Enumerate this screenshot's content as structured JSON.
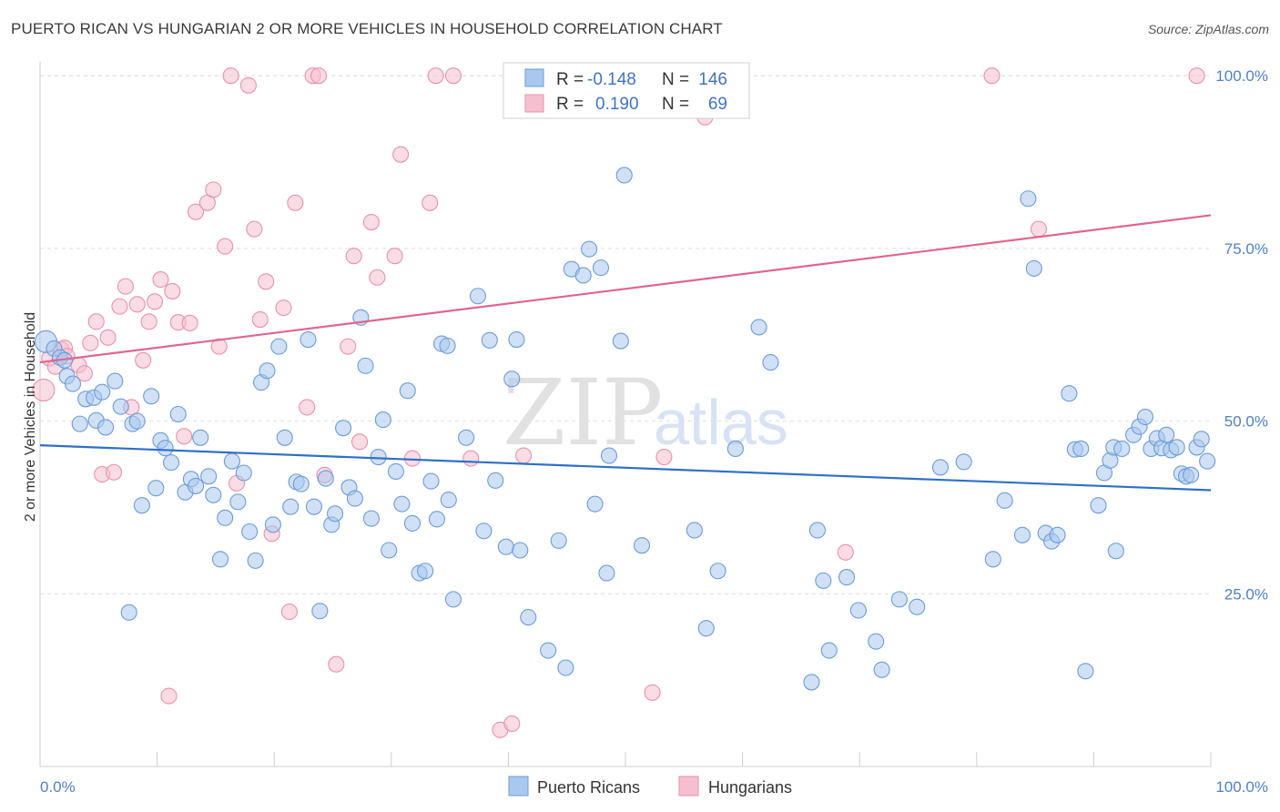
{
  "title": "PUERTO RICAN VS HUNGARIAN 2 OR MORE VEHICLES IN HOUSEHOLD CORRELATION CHART",
  "source": "Source: ZipAtlas.com",
  "watermark": {
    "zip": "ZIP",
    "atlas": "atlas"
  },
  "legend": {
    "rows": [
      {
        "r_label": "R =",
        "r_value": "-0.148",
        "n_label": "N =",
        "n_value": "146"
      },
      {
        "r_label": "R =",
        "r_value": "0.190",
        "n_label": "N =",
        "n_value": "69"
      }
    ]
  },
  "colors": {
    "blue_fill": "#a9c8ef",
    "blue_stroke": "#6c9bd8",
    "blue_line": "#2e6fc9",
    "pink_fill": "#f6bfd0",
    "pink_stroke": "#e891ad",
    "pink_line": "#e06591",
    "tick": "#4f7fd0",
    "grid": "#dddddd"
  },
  "chart_data": {
    "type": "scatter",
    "title": "PUERTO RICAN VS HUNGARIAN 2 OR MORE VEHICLES IN HOUSEHOLD CORRELATION CHART",
    "xlabel": "",
    "ylabel": "2 or more Vehicles in Household",
    "xlim": [
      0,
      100
    ],
    "ylim": [
      0,
      102
    ],
    "x_tick_labels": [
      "0.0%",
      "100.0%"
    ],
    "y_ticks": [
      25,
      50,
      75,
      100
    ],
    "y_tick_labels": [
      "25.0%",
      "50.0%",
      "75.0%",
      "100.0%"
    ],
    "grid": true,
    "legend_position": "top-center",
    "series": [
      {
        "name": "Puerto Ricans",
        "r": -0.148,
        "n": 146,
        "trend": {
          "x": [
            0,
            100
          ],
          "y": [
            46.5,
            40.0
          ]
        },
        "points": [
          [
            0.5,
            61.5
          ],
          [
            1.2,
            60.5
          ],
          [
            1.7,
            59.2
          ],
          [
            2.1,
            58.8
          ],
          [
            2.3,
            56.5
          ],
          [
            2.8,
            55.4
          ],
          [
            3.4,
            49.6
          ],
          [
            3.9,
            53.2
          ],
          [
            4.6,
            53.4
          ],
          [
            4.8,
            50.1
          ],
          [
            5.3,
            54.2
          ],
          [
            5.6,
            49.1
          ],
          [
            6.4,
            55.8
          ],
          [
            6.9,
            52.1
          ],
          [
            7.6,
            22.3
          ],
          [
            7.9,
            49.6
          ],
          [
            8.3,
            50.0
          ],
          [
            8.7,
            37.8
          ],
          [
            9.5,
            53.6
          ],
          [
            9.9,
            40.3
          ],
          [
            10.3,
            47.2
          ],
          [
            10.7,
            46.1
          ],
          [
            11.2,
            44.0
          ],
          [
            11.8,
            51.0
          ],
          [
            12.4,
            39.7
          ],
          [
            12.9,
            41.6
          ],
          [
            13.3,
            40.6
          ],
          [
            13.7,
            47.6
          ],
          [
            14.4,
            42.0
          ],
          [
            14.8,
            39.3
          ],
          [
            15.4,
            30.0
          ],
          [
            15.8,
            36.0
          ],
          [
            16.4,
            44.2
          ],
          [
            16.9,
            38.3
          ],
          [
            17.4,
            42.5
          ],
          [
            17.9,
            34.0
          ],
          [
            18.4,
            29.8
          ],
          [
            18.9,
            55.6
          ],
          [
            19.4,
            57.3
          ],
          [
            19.9,
            35.0
          ],
          [
            20.4,
            60.8
          ],
          [
            20.9,
            47.6
          ],
          [
            21.4,
            37.6
          ],
          [
            21.9,
            41.2
          ],
          [
            22.3,
            40.9
          ],
          [
            22.9,
            61.8
          ],
          [
            23.4,
            37.6
          ],
          [
            23.9,
            22.5
          ],
          [
            24.4,
            41.7
          ],
          [
            24.9,
            35.0
          ],
          [
            25.2,
            36.6
          ],
          [
            25.9,
            49.0
          ],
          [
            26.4,
            40.4
          ],
          [
            26.9,
            38.8
          ],
          [
            27.4,
            65.0
          ],
          [
            27.8,
            58.0
          ],
          [
            28.3,
            35.9
          ],
          [
            28.9,
            44.8
          ],
          [
            29.3,
            50.2
          ],
          [
            29.8,
            31.3
          ],
          [
            30.4,
            42.7
          ],
          [
            30.9,
            38.0
          ],
          [
            31.4,
            54.4
          ],
          [
            31.8,
            35.2
          ],
          [
            32.4,
            28.0
          ],
          [
            32.9,
            28.3
          ],
          [
            33.4,
            41.3
          ],
          [
            33.9,
            35.8
          ],
          [
            34.3,
            61.2
          ],
          [
            34.9,
            38.6
          ],
          [
            35.3,
            24.2
          ],
          [
            36.4,
            47.6
          ],
          [
            37.4,
            68.1
          ],
          [
            37.9,
            34.1
          ],
          [
            38.4,
            61.7
          ],
          [
            38.9,
            41.4
          ],
          [
            39.8,
            31.8
          ],
          [
            40.3,
            56.1
          ],
          [
            40.7,
            61.8
          ],
          [
            41.0,
            31.3
          ],
          [
            41.7,
            21.6
          ],
          [
            43.4,
            16.8
          ],
          [
            44.3,
            32.7
          ],
          [
            44.9,
            14.3
          ],
          [
            45.4,
            72.0
          ],
          [
            46.4,
            71.1
          ],
          [
            46.9,
            74.9
          ],
          [
            47.4,
            38.0
          ],
          [
            47.9,
            72.2
          ],
          [
            48.4,
            28.0
          ],
          [
            48.6,
            45.0
          ],
          [
            49.6,
            61.6
          ],
          [
            49.9,
            85.6
          ],
          [
            51.4,
            32.0
          ],
          [
            55.9,
            34.2
          ],
          [
            56.9,
            20.0
          ],
          [
            57.9,
            28.3
          ],
          [
            59.4,
            46.0
          ],
          [
            61.4,
            63.6
          ],
          [
            62.4,
            58.5
          ],
          [
            65.9,
            12.2
          ],
          [
            66.4,
            34.2
          ],
          [
            66.9,
            26.9
          ],
          [
            67.4,
            16.8
          ],
          [
            68.9,
            27.4
          ],
          [
            69.9,
            22.6
          ],
          [
            71.4,
            18.1
          ],
          [
            71.9,
            14.0
          ],
          [
            73.4,
            24.2
          ],
          [
            74.9,
            23.1
          ],
          [
            76.9,
            43.3
          ],
          [
            78.9,
            44.1
          ],
          [
            81.4,
            30.0
          ],
          [
            82.4,
            38.5
          ],
          [
            83.9,
            33.5
          ],
          [
            84.4,
            82.2
          ],
          [
            84.9,
            72.1
          ],
          [
            85.9,
            33.8
          ],
          [
            86.4,
            32.6
          ],
          [
            86.9,
            33.5
          ],
          [
            87.9,
            54.0
          ],
          [
            88.4,
            45.9
          ],
          [
            88.9,
            46.0
          ],
          [
            89.3,
            13.8
          ],
          [
            90.4,
            37.8
          ],
          [
            90.9,
            42.5
          ],
          [
            91.4,
            44.3
          ],
          [
            91.7,
            46.2
          ],
          [
            91.9,
            31.2
          ],
          [
            92.4,
            46.0
          ],
          [
            93.4,
            48.0
          ],
          [
            93.9,
            49.2
          ],
          [
            94.4,
            50.6
          ],
          [
            94.9,
            46.0
          ],
          [
            95.4,
            47.5
          ],
          [
            95.8,
            46.1
          ],
          [
            96.2,
            48.0
          ],
          [
            96.6,
            45.8
          ],
          [
            97.1,
            46.2
          ],
          [
            97.5,
            42.4
          ],
          [
            97.9,
            42.0
          ],
          [
            98.3,
            42.2
          ],
          [
            98.8,
            46.2
          ],
          [
            99.2,
            47.4
          ],
          [
            99.7,
            44.2
          ],
          [
            34.8,
            60.9
          ]
        ]
      },
      {
        "name": "Hungarians",
        "r": 0.19,
        "n": 69,
        "trend": {
          "x": [
            0,
            100
          ],
          "y": [
            58.5,
            79.8
          ]
        },
        "points": [
          [
            0.3,
            54.5
          ],
          [
            0.8,
            59.1
          ],
          [
            1.3,
            57.9
          ],
          [
            1.8,
            60.4
          ],
          [
            2.1,
            60.6
          ],
          [
            2.3,
            59.4
          ],
          [
            3.3,
            58.1
          ],
          [
            3.8,
            56.9
          ],
          [
            4.3,
            61.3
          ],
          [
            4.8,
            64.4
          ],
          [
            5.3,
            42.3
          ],
          [
            5.8,
            62.1
          ],
          [
            6.3,
            42.6
          ],
          [
            6.8,
            66.6
          ],
          [
            7.3,
            69.5
          ],
          [
            7.8,
            52.0
          ],
          [
            8.3,
            66.9
          ],
          [
            8.8,
            58.8
          ],
          [
            9.3,
            64.4
          ],
          [
            9.8,
            67.3
          ],
          [
            10.3,
            70.5
          ],
          [
            11.0,
            10.2
          ],
          [
            11.3,
            68.8
          ],
          [
            11.8,
            64.3
          ],
          [
            12.3,
            47.8
          ],
          [
            12.8,
            64.2
          ],
          [
            13.3,
            80.3
          ],
          [
            14.3,
            81.6
          ],
          [
            14.8,
            83.5
          ],
          [
            15.3,
            60.8
          ],
          [
            15.8,
            75.3
          ],
          [
            16.3,
            100.0
          ],
          [
            16.8,
            41.0
          ],
          [
            17.8,
            98.6
          ],
          [
            18.3,
            77.8
          ],
          [
            18.8,
            64.7
          ],
          [
            19.3,
            70.2
          ],
          [
            19.8,
            33.7
          ],
          [
            20.8,
            66.4
          ],
          [
            21.3,
            22.4
          ],
          [
            21.8,
            81.6
          ],
          [
            22.8,
            52.0
          ],
          [
            23.3,
            100.0
          ],
          [
            23.8,
            100.0
          ],
          [
            24.3,
            42.2
          ],
          [
            25.3,
            14.8
          ],
          [
            26.3,
            60.8
          ],
          [
            26.8,
            73.9
          ],
          [
            27.3,
            47.0
          ],
          [
            28.3,
            78.8
          ],
          [
            28.8,
            70.8
          ],
          [
            30.3,
            73.9
          ],
          [
            30.8,
            88.6
          ],
          [
            31.8,
            44.6
          ],
          [
            33.3,
            81.6
          ],
          [
            33.8,
            100.0
          ],
          [
            35.3,
            100.0
          ],
          [
            36.8,
            44.6
          ],
          [
            39.3,
            5.3
          ],
          [
            40.3,
            6.2
          ],
          [
            41.3,
            45.0
          ],
          [
            42.3,
            100.0
          ],
          [
            52.3,
            10.7
          ],
          [
            53.3,
            44.8
          ],
          [
            56.8,
            94.0
          ],
          [
            68.8,
            31.0
          ],
          [
            81.3,
            100.0
          ],
          [
            85.3,
            77.8
          ],
          [
            98.8,
            100.0
          ]
        ]
      }
    ]
  }
}
